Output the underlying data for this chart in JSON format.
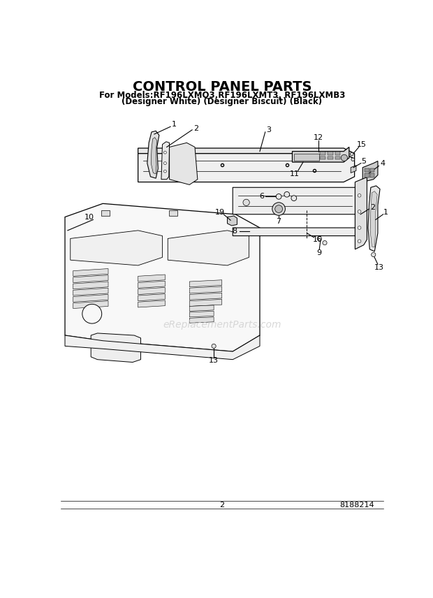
{
  "title": "CONTROL PANEL PARTS",
  "subtitle_line1": "For Models:RF196LXMQ3,RF196LXMT3, RF196LXMB3",
  "subtitle_line2": "(Designer White) (Designer Biscuit) (Black)",
  "page_number": "2",
  "part_number": "8188214",
  "watermark": "eReplacementParts.com",
  "background_color": "#ffffff",
  "title_fontsize": 14,
  "subtitle_fontsize": 8.5,
  "footer_fontsize": 8,
  "watermark_fontsize": 10,
  "watermark_color": "#cccccc",
  "text_color": "#000000",
  "line_color": "#000000",
  "fig_width": 6.2,
  "fig_height": 8.56,
  "dpi": 100
}
